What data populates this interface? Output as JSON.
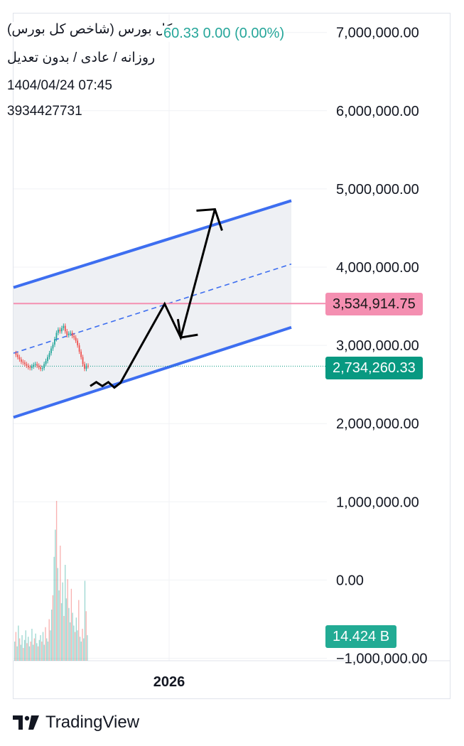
{
  "header": {
    "title": "کل بورس (شاخص کل بورس)",
    "price_change": "60.33  0.00 (0.00%)",
    "interval": "روزانه / عادی / بدون تعدیل",
    "datetime": "1404/04/24 07:45",
    "volume_raw": "3934427731"
  },
  "badges": {
    "resistance": "3,534,914.75",
    "last_price": "2,734,260.33",
    "volume": "14.424 B"
  },
  "brand": {
    "name": "TradingView",
    "logo_icon": "tradingview-logo-icon"
  },
  "colors": {
    "channel_line": "#3d6ef0",
    "channel_fill": "#eef0f4",
    "resistance": "#f48fb1",
    "price_line": "#089981",
    "up": "#26a69a",
    "down": "#ef5350",
    "arrow": "#000000"
  },
  "chart_data": {
    "type": "line",
    "yaxis": {
      "ticks": [
        7000000,
        6000000,
        5000000,
        4000000,
        3000000,
        2000000,
        1000000,
        0,
        -1000000
      ],
      "tick_labels": [
        "7,000,000.00",
        "6,000,000.00",
        "5,000,000.00",
        "4,000,000.00",
        "3,000,000.00",
        "2,000,000.00",
        "1,000,000.00",
        "0.00",
        "−1,000,000.00"
      ],
      "range": [
        -1000000,
        7250000
      ]
    },
    "xaxis": {
      "tick_labels": [
        "2026"
      ]
    },
    "price_series": {
      "values": [
        2900000,
        2880000,
        2850000,
        2820000,
        2790000,
        2780000,
        2760000,
        2740000,
        2720000,
        2710000,
        2730000,
        2750000,
        2760000,
        2740000,
        2720000,
        2700000,
        2710000,
        2760000,
        2800000,
        2850000,
        2900000,
        2960000,
        3010000,
        3080000,
        3160000,
        3200000,
        3180000,
        3220000,
        3250000,
        3180000,
        3130000,
        3150000,
        3160000,
        3120000,
        3100000,
        3060000,
        3000000,
        2920000,
        2850000,
        2760000,
        2700000,
        2740000,
        2734260
      ]
    },
    "last_price": 2734260.33,
    "resistance_level": 3534914.75,
    "channel": {
      "upper": [
        [
          0,
          3740000
        ],
        [
          1,
          4850000
        ]
      ],
      "middle": [
        [
          0,
          2900000
        ],
        [
          1,
          4040000
        ]
      ],
      "lower": [
        [
          0,
          2080000
        ],
        [
          1,
          3230000
        ]
      ]
    },
    "projection_path": [
      [
        0,
        2480000
      ],
      [
        0.03,
        2530000
      ],
      [
        0.06,
        2480000
      ],
      [
        0.09,
        2530000
      ],
      [
        0.12,
        2460000
      ],
      [
        0.15,
        2520000
      ],
      [
        0.37,
        3530000
      ],
      [
        0.45,
        3100000
      ],
      [
        0.62,
        4740000
      ]
    ],
    "volume_bars": [
      0.12,
      0.18,
      0.09,
      0.22,
      0.14,
      0.1,
      0.16,
      0.08,
      0.13,
      0.19,
      0.11,
      0.15,
      0.09,
      0.12,
      0.2,
      0.1,
      0.14,
      0.17,
      0.11,
      0.09,
      0.13,
      0.16,
      0.12,
      0.18,
      0.1,
      0.21,
      0.14,
      0.12,
      0.26,
      0.19,
      0.32,
      0.41,
      0.65,
      0.82,
      1.0,
      0.58,
      0.44,
      0.72,
      0.36,
      0.49,
      0.28,
      0.6,
      0.39,
      0.51,
      0.33,
      0.24,
      0.45,
      0.3,
      0.22,
      0.18,
      0.27,
      0.19,
      0.38,
      0.15,
      0.12,
      0.2,
      0.14,
      0.5,
      0.31,
      0.16
    ]
  }
}
